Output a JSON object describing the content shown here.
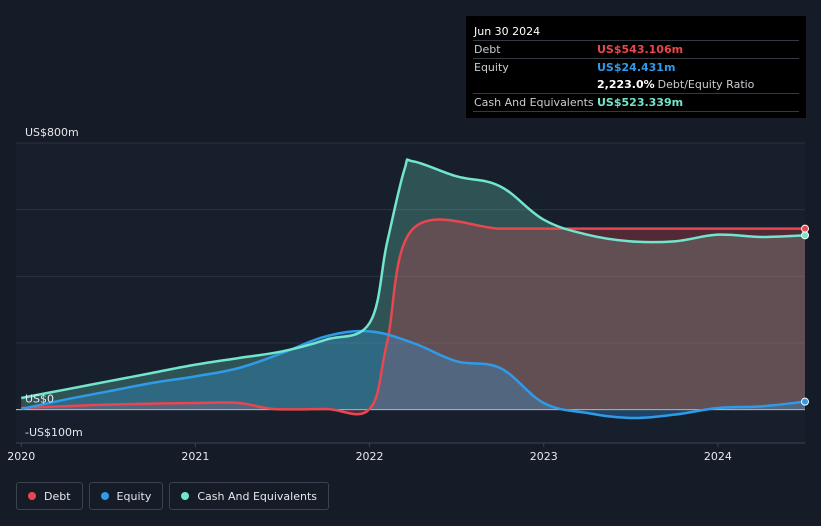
{
  "tooltip": {
    "date": "Jun 30 2024",
    "rows": [
      {
        "label": "Debt",
        "value": "US$543.106m",
        "color": "#e8474f"
      },
      {
        "label": "Equity",
        "value": "US$24.431m",
        "color": "#2f9be8"
      },
      {
        "label": "",
        "value": "2,223.0%",
        "sub": "Debt/Equity Ratio",
        "color": "#ffffff"
      },
      {
        "label": "Cash And Equivalents",
        "value": "US$523.339m",
        "color": "#72e6cc"
      }
    ]
  },
  "legend": [
    {
      "label": "Debt",
      "color": "#e8474f"
    },
    {
      "label": "Equity",
      "color": "#2f9be8"
    },
    {
      "label": "Cash And Equivalents",
      "color": "#72e6cc"
    }
  ],
  "chart_data": {
    "type": "area",
    "title": "",
    "xlabel": "",
    "ylabel": "",
    "y_tick_labels": [
      {
        "value": 800,
        "label": "US$800m"
      },
      {
        "value": 0,
        "label": "US$0"
      },
      {
        "value": -100,
        "label": "-US$100m"
      }
    ],
    "x_tick_labels": [
      {
        "value": 2020,
        "label": "2020"
      },
      {
        "value": 2021,
        "label": "2021"
      },
      {
        "value": 2022,
        "label": "2022"
      },
      {
        "value": 2023,
        "label": "2023"
      },
      {
        "value": 2024,
        "label": "2024"
      }
    ],
    "xlim": [
      2019.97,
      2024.5
    ],
    "ylim": [
      -100,
      800
    ],
    "grid": true,
    "legend_position": "bottom-left",
    "series": [
      {
        "name": "Debt",
        "color": "#e8474f",
        "x": [
          2020.0,
          2020.5,
          2021.0,
          2021.25,
          2021.45,
          2021.75,
          2022.0,
          2022.1,
          2022.25,
          2022.75,
          2023.0,
          2023.5,
          2024.0,
          2024.5
        ],
        "y": [
          5,
          15,
          20,
          20,
          2,
          2,
          2,
          200,
          543,
          543,
          543,
          543,
          543,
          543
        ]
      },
      {
        "name": "Equity",
        "color": "#2f9be8",
        "x": [
          2020.0,
          2020.25,
          2020.5,
          2020.75,
          2021.0,
          2021.25,
          2021.5,
          2021.75,
          2022.0,
          2022.25,
          2022.5,
          2022.75,
          2023.0,
          2023.25,
          2023.5,
          2023.75,
          2024.0,
          2024.25,
          2024.5
        ],
        "y": [
          2,
          30,
          55,
          80,
          100,
          125,
          170,
          220,
          235,
          200,
          145,
          125,
          20,
          -10,
          -25,
          -15,
          5,
          10,
          24
        ]
      },
      {
        "name": "Cash And Equivalents",
        "color": "#72e6cc",
        "x": [
          2020.0,
          2020.25,
          2020.5,
          2020.75,
          2021.0,
          2021.25,
          2021.5,
          2021.75,
          2022.0,
          2022.1,
          2022.2,
          2022.25,
          2022.5,
          2022.75,
          2023.0,
          2023.25,
          2023.5,
          2023.75,
          2024.0,
          2024.25,
          2024.5
        ],
        "y": [
          35,
          60,
          85,
          110,
          135,
          155,
          175,
          210,
          260,
          500,
          720,
          745,
          700,
          670,
          570,
          525,
          505,
          505,
          525,
          518,
          523
        ]
      }
    ]
  }
}
